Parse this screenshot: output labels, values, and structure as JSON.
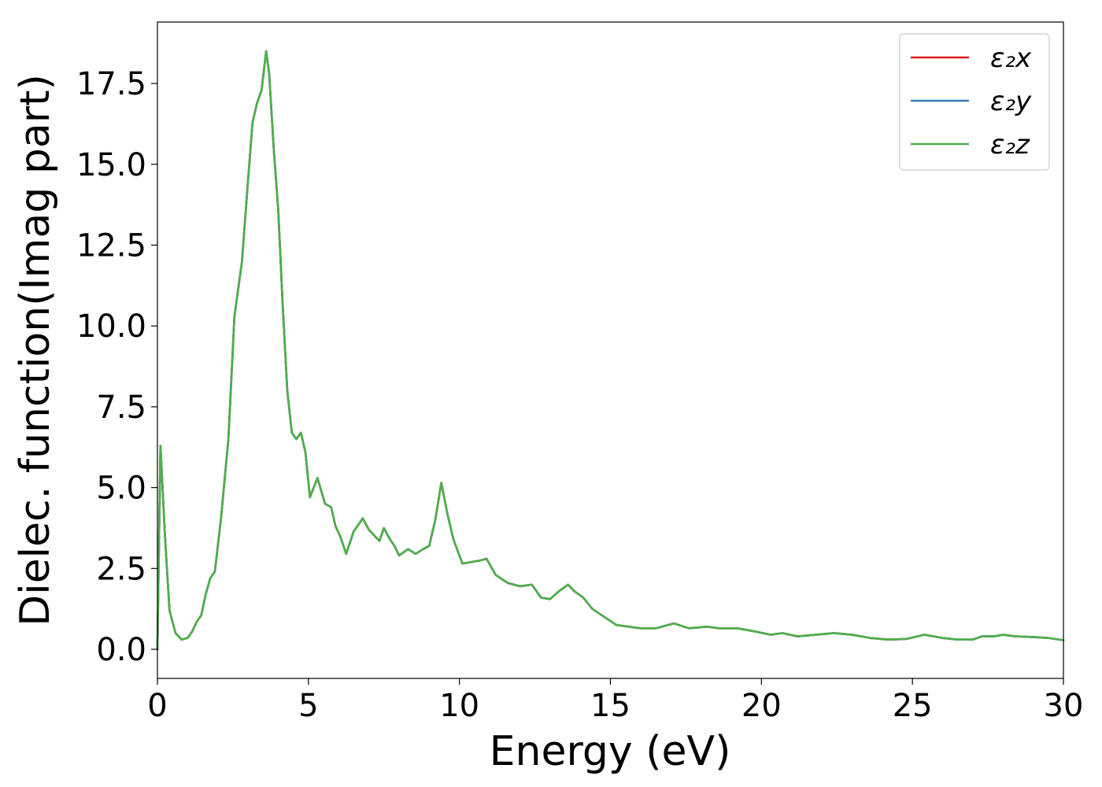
{
  "chart_data": {
    "type": "line",
    "xlabel": "Energy (eV)",
    "ylabel": "Dielec. function(Imag part)",
    "xlim": [
      0,
      30
    ],
    "ylim": [
      -0.9,
      19.4
    ],
    "xticks": [
      0,
      5,
      10,
      15,
      20,
      25,
      30
    ],
    "xtick_labels": [
      "0",
      "5",
      "10",
      "15",
      "20",
      "25",
      "30"
    ],
    "yticks": [
      0.0,
      2.5,
      5.0,
      7.5,
      10.0,
      12.5,
      15.0,
      17.5
    ],
    "ytick_labels": [
      "0.0",
      "2.5",
      "5.0",
      "7.5",
      "10.0",
      "12.5",
      "15.0",
      "17.5"
    ],
    "grid": false,
    "legend_position": "top-right",
    "x": [
      0,
      0.1,
      0.25,
      0.4,
      0.6,
      0.8,
      1.0,
      1.15,
      1.3,
      1.45,
      1.6,
      1.75,
      1.9,
      2.1,
      2.35,
      2.55,
      2.8,
      3.0,
      3.15,
      3.3,
      3.45,
      3.6,
      3.7,
      3.85,
      4.0,
      4.15,
      4.3,
      4.45,
      4.6,
      4.75,
      4.9,
      5.05,
      5.3,
      5.55,
      5.75,
      5.9,
      6.05,
      6.25,
      6.5,
      6.8,
      7.0,
      7.2,
      7.35,
      7.5,
      7.7,
      7.85,
      8.0,
      8.3,
      8.55,
      8.8,
      9.0,
      9.2,
      9.4,
      9.6,
      9.8,
      10.1,
      10.4,
      10.7,
      10.9,
      11.2,
      11.6,
      12.0,
      12.4,
      12.7,
      13.0,
      13.3,
      13.6,
      13.8,
      14.1,
      14.4,
      14.8,
      15.2,
      15.6,
      16.0,
      16.5,
      17.1,
      17.6,
      18.2,
      18.6,
      19.2,
      19.8,
      20.3,
      20.7,
      21.2,
      21.8,
      22.4,
      23.0,
      23.6,
      24.2,
      24.8,
      25.4,
      26.0,
      26.5,
      27.0,
      27.3,
      27.7,
      28.0,
      28.4,
      29.0,
      29.5,
      30.0
    ],
    "series": [
      {
        "name": "ε₂x",
        "color": "#e41a1c",
        "values": [
          0.0,
          6.3,
          3.5,
          1.2,
          0.5,
          0.3,
          0.35,
          0.55,
          0.85,
          1.05,
          1.7,
          2.2,
          2.4,
          4.0,
          6.5,
          10.3,
          12.0,
          14.5,
          16.3,
          16.9,
          17.3,
          18.5,
          17.8,
          15.5,
          13.6,
          10.6,
          8.0,
          6.7,
          6.5,
          6.7,
          6.1,
          4.7,
          5.3,
          4.5,
          4.4,
          3.8,
          3.5,
          2.95,
          3.65,
          4.05,
          3.7,
          3.5,
          3.35,
          3.75,
          3.4,
          3.2,
          2.9,
          3.1,
          2.95,
          3.1,
          3.2,
          4.0,
          5.15,
          4.2,
          3.4,
          2.65,
          2.7,
          2.75,
          2.8,
          2.3,
          2.05,
          1.95,
          2.0,
          1.6,
          1.55,
          1.8,
          2.0,
          1.8,
          1.6,
          1.25,
          1.0,
          0.75,
          0.7,
          0.65,
          0.65,
          0.8,
          0.65,
          0.7,
          0.65,
          0.65,
          0.55,
          0.45,
          0.5,
          0.4,
          0.45,
          0.5,
          0.45,
          0.35,
          0.3,
          0.32,
          0.45,
          0.35,
          0.3,
          0.3,
          0.4,
          0.4,
          0.45,
          0.4,
          0.38,
          0.35,
          0.28
        ]
      },
      {
        "name": "ε₂y",
        "color": "#377eb8",
        "values": [
          0.0,
          6.3,
          3.5,
          1.2,
          0.5,
          0.3,
          0.35,
          0.55,
          0.85,
          1.05,
          1.7,
          2.2,
          2.4,
          4.0,
          6.5,
          10.3,
          12.0,
          14.5,
          16.3,
          16.9,
          17.3,
          18.5,
          17.8,
          15.5,
          13.6,
          10.6,
          8.0,
          6.7,
          6.5,
          6.7,
          6.1,
          4.7,
          5.3,
          4.5,
          4.4,
          3.8,
          3.5,
          2.95,
          3.65,
          4.05,
          3.7,
          3.5,
          3.35,
          3.75,
          3.4,
          3.2,
          2.9,
          3.1,
          2.95,
          3.1,
          3.2,
          4.0,
          5.15,
          4.2,
          3.4,
          2.65,
          2.7,
          2.75,
          2.8,
          2.3,
          2.05,
          1.95,
          2.0,
          1.6,
          1.55,
          1.8,
          2.0,
          1.8,
          1.6,
          1.25,
          1.0,
          0.75,
          0.7,
          0.65,
          0.65,
          0.8,
          0.65,
          0.7,
          0.65,
          0.65,
          0.55,
          0.45,
          0.5,
          0.4,
          0.45,
          0.5,
          0.45,
          0.35,
          0.3,
          0.32,
          0.45,
          0.35,
          0.3,
          0.3,
          0.4,
          0.4,
          0.45,
          0.4,
          0.38,
          0.35,
          0.28
        ]
      },
      {
        "name": "ε₂z",
        "color": "#4daf4a",
        "values": [
          0.0,
          6.3,
          3.5,
          1.2,
          0.5,
          0.3,
          0.35,
          0.55,
          0.85,
          1.05,
          1.7,
          2.2,
          2.4,
          4.0,
          6.5,
          10.3,
          12.0,
          14.5,
          16.3,
          16.9,
          17.3,
          18.5,
          17.8,
          15.5,
          13.6,
          10.6,
          8.0,
          6.7,
          6.5,
          6.7,
          6.1,
          4.7,
          5.3,
          4.5,
          4.4,
          3.8,
          3.5,
          2.95,
          3.65,
          4.05,
          3.7,
          3.5,
          3.35,
          3.75,
          3.4,
          3.2,
          2.9,
          3.1,
          2.95,
          3.1,
          3.2,
          4.0,
          5.15,
          4.2,
          3.4,
          2.65,
          2.7,
          2.75,
          2.8,
          2.3,
          2.05,
          1.95,
          2.0,
          1.6,
          1.55,
          1.8,
          2.0,
          1.8,
          1.6,
          1.25,
          1.0,
          0.75,
          0.7,
          0.65,
          0.65,
          0.8,
          0.65,
          0.7,
          0.65,
          0.65,
          0.55,
          0.45,
          0.5,
          0.4,
          0.45,
          0.5,
          0.45,
          0.35,
          0.3,
          0.32,
          0.45,
          0.35,
          0.3,
          0.3,
          0.4,
          0.4,
          0.45,
          0.4,
          0.38,
          0.35,
          0.28
        ]
      }
    ]
  }
}
